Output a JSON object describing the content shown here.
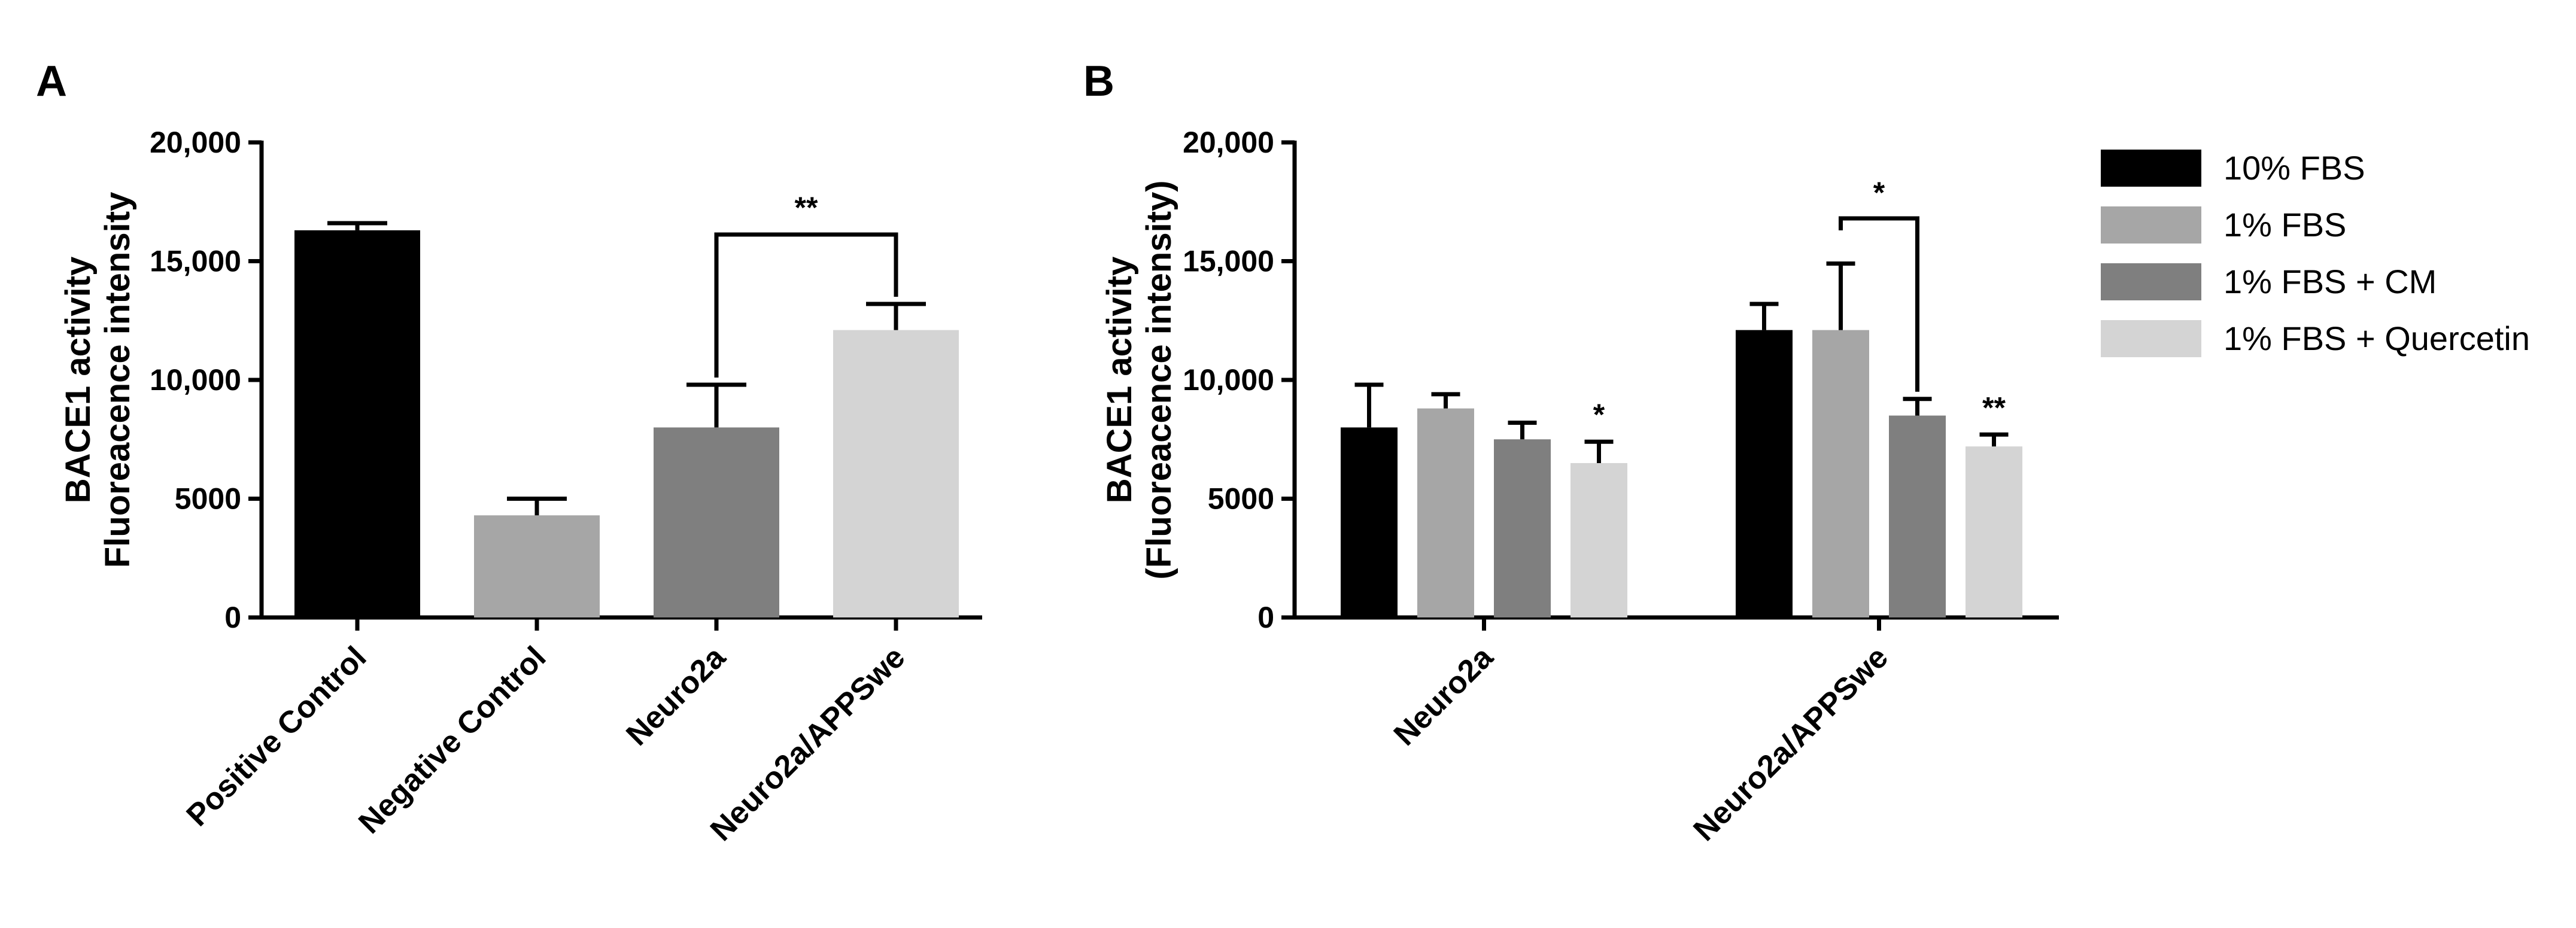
{
  "chart_data": [
    {
      "panel": "A",
      "type": "bar",
      "ylabel_lines": [
        "BACE1 activity",
        "Fluoreacence intensity"
      ],
      "ylim": [
        0,
        20000
      ],
      "yticks": [
        0,
        5000,
        10000,
        15000,
        20000
      ],
      "ytick_labels": [
        "0",
        "5000",
        "10,000",
        "15,000",
        "20,000"
      ],
      "categories": [
        "Positive Control",
        "Negative Control",
        "Neuro2a",
        "Neuro2a/APPSwe"
      ],
      "values": [
        16300,
        4300,
        8000,
        12100
      ],
      "errors": [
        300,
        700,
        1800,
        1100
      ],
      "colors": [
        "#000000",
        "#a6a6a6",
        "#7f7f7f",
        "#d4d4d4"
      ],
      "significance": [
        {
          "from": 2,
          "to": 3,
          "label": "**"
        }
      ]
    },
    {
      "panel": "B",
      "type": "bar",
      "ylabel_lines": [
        "BACE1 activity",
        "(Fluoreacence intensity)"
      ],
      "ylim": [
        0,
        20000
      ],
      "yticks": [
        0,
        5000,
        10000,
        15000,
        20000
      ],
      "ytick_labels": [
        "0",
        "5000",
        "10,000",
        "15,000",
        "20,000"
      ],
      "categories": [
        "Neuro2a",
        "Neuro2a/APPSwe"
      ],
      "series": [
        {
          "name": "10% FBS",
          "color": "#000000",
          "values": [
            8000,
            12100
          ],
          "errors": [
            1800,
            1100
          ],
          "stars": [
            "",
            ""
          ]
        },
        {
          "name": "1% FBS",
          "color": "#a6a6a6",
          "values": [
            8800,
            12100
          ],
          "errors": [
            600,
            2800
          ],
          "stars": [
            "",
            ""
          ]
        },
        {
          "name": "1% FBS + CM",
          "color": "#7f7f7f",
          "values": [
            7500,
            8500
          ],
          "errors": [
            700,
            700
          ],
          "stars": [
            "",
            ""
          ]
        },
        {
          "name": "1% FBS + Quercetin",
          "color": "#d4d4d4",
          "values": [
            6500,
            7200
          ],
          "errors": [
            900,
            500
          ],
          "stars": [
            "*",
            "**"
          ]
        }
      ],
      "significance": [
        {
          "category": 1,
          "from": 1,
          "to": 2,
          "label": "*"
        }
      ],
      "legend": "right"
    }
  ]
}
